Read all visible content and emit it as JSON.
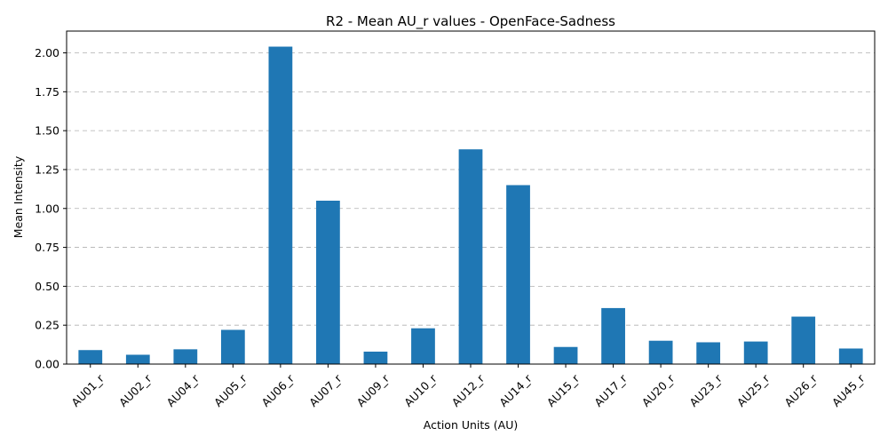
{
  "chart_data": {
    "type": "bar",
    "title": "R2 - Mean AU_r values - OpenFace-Sadness",
    "xlabel": "Action Units (AU)",
    "ylabel": "Mean Intensity",
    "categories": [
      "AU01_r",
      "AU02_r",
      "AU04_r",
      "AU05_r",
      "AU06_r",
      "AU07_r",
      "AU09_r",
      "AU10_r",
      "AU12_r",
      "AU14_r",
      "AU15_r",
      "AU17_r",
      "AU20_r",
      "AU23_r",
      "AU25_r",
      "AU26_r",
      "AU45_r"
    ],
    "values": [
      0.09,
      0.06,
      0.095,
      0.22,
      2.04,
      1.05,
      0.08,
      0.23,
      1.38,
      1.15,
      0.11,
      0.36,
      0.15,
      0.14,
      0.145,
      0.305,
      0.1
    ],
    "ylim": [
      0,
      2.14
    ],
    "yticks": [
      "0.00",
      "0.25",
      "0.50",
      "0.75",
      "1.00",
      "1.25",
      "1.50",
      "1.75",
      "2.00"
    ],
    "grid": "y-dashed",
    "bar_color": "#1f77b4"
  }
}
